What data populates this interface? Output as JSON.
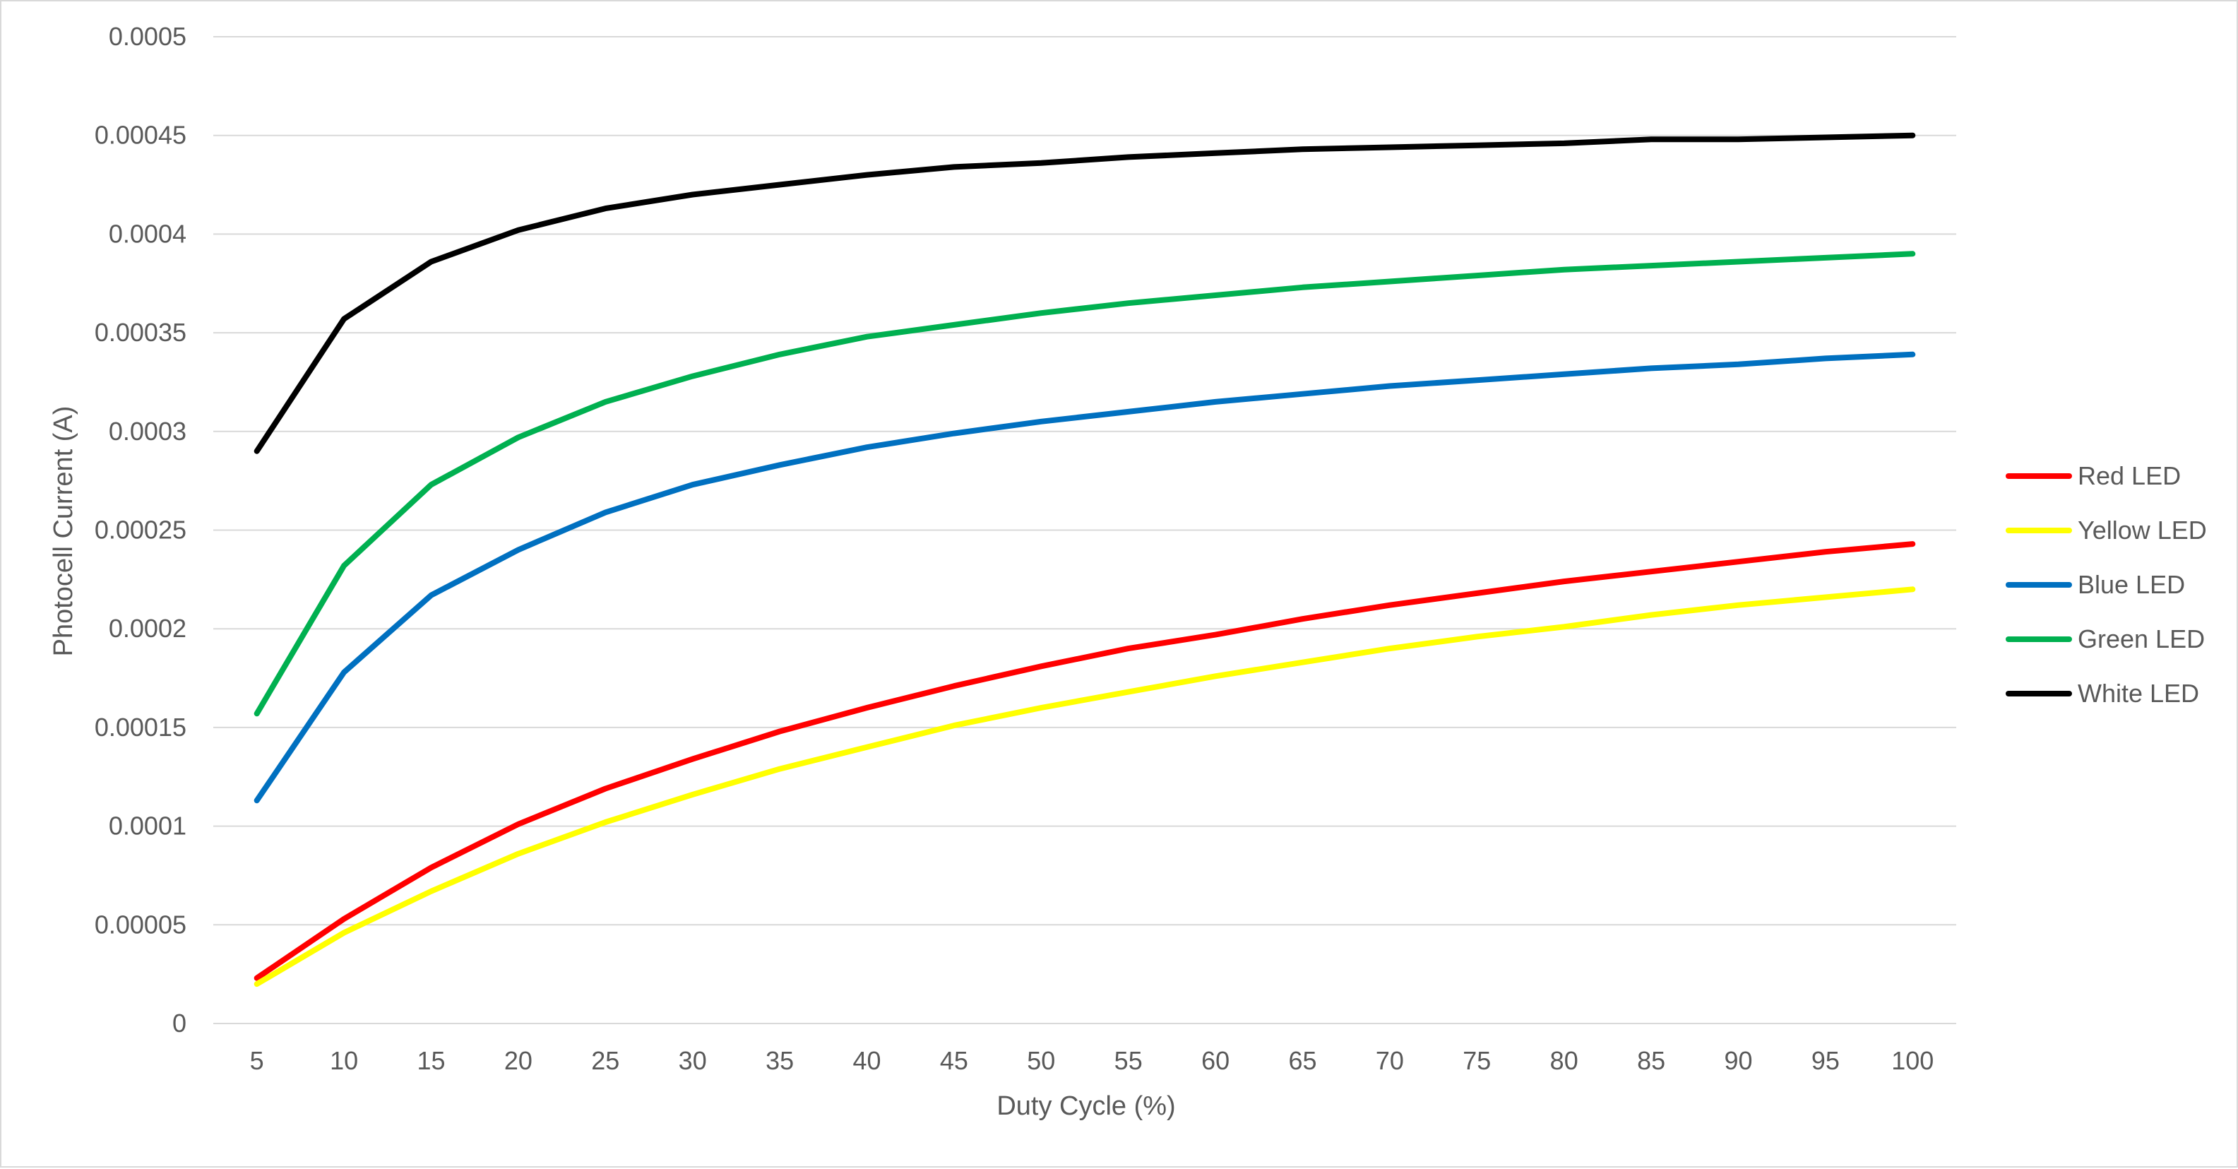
{
  "chart_data": {
    "type": "line",
    "title": "",
    "xlabel": "Duty Cycle (%)",
    "ylabel": "Photocell Current (A)",
    "x": [
      5,
      10,
      15,
      20,
      25,
      30,
      35,
      40,
      45,
      50,
      55,
      60,
      65,
      70,
      75,
      80,
      85,
      90,
      95,
      100
    ],
    "x_tick_labels": [
      "5",
      "10",
      "15",
      "20",
      "25",
      "30",
      "35",
      "40",
      "45",
      "50",
      "55",
      "60",
      "65",
      "70",
      "75",
      "80",
      "85",
      "90",
      "95",
      "100"
    ],
    "ylim": [
      0,
      0.0005
    ],
    "y_ticks": [
      0,
      5e-05,
      0.0001,
      0.00015,
      0.0002,
      0.00025,
      0.0003,
      0.00035,
      0.0004,
      0.00045,
      0.0005
    ],
    "y_tick_labels": [
      "0",
      "0.00005",
      "0.0001",
      "0.00015",
      "0.0002",
      "0.00025",
      "0.0003",
      "0.00035",
      "0.0004",
      "0.00045",
      "0.0005"
    ],
    "grid": "horizontal",
    "legend_position": "right",
    "series": [
      {
        "name": "Red LED",
        "color": "#ff0000",
        "values": [
          2.3e-05,
          5.3e-05,
          7.9e-05,
          0.000101,
          0.000119,
          0.000134,
          0.000148,
          0.00016,
          0.000171,
          0.000181,
          0.00019,
          0.000197,
          0.000205,
          0.000212,
          0.000218,
          0.000224,
          0.000229,
          0.000234,
          0.000239,
          0.000243
        ]
      },
      {
        "name": "Yellow LED",
        "color": "#ffff00",
        "values": [
          2e-05,
          4.6e-05,
          6.7e-05,
          8.6e-05,
          0.000102,
          0.000116,
          0.000129,
          0.00014,
          0.000151,
          0.00016,
          0.000168,
          0.000176,
          0.000183,
          0.00019,
          0.000196,
          0.000201,
          0.000207,
          0.000212,
          0.000216,
          0.00022
        ]
      },
      {
        "name": "Blue LED",
        "color": "#0070c0",
        "values": [
          0.000113,
          0.000178,
          0.000217,
          0.00024,
          0.000259,
          0.000273,
          0.000283,
          0.000292,
          0.000299,
          0.000305,
          0.00031,
          0.000315,
          0.000319,
          0.000323,
          0.000326,
          0.000329,
          0.000332,
          0.000334,
          0.000337,
          0.000339
        ]
      },
      {
        "name": "Green LED",
        "color": "#00b050",
        "values": [
          0.000157,
          0.000232,
          0.000273,
          0.000297,
          0.000315,
          0.000328,
          0.000339,
          0.000348,
          0.000354,
          0.00036,
          0.000365,
          0.000369,
          0.000373,
          0.000376,
          0.000379,
          0.000382,
          0.000384,
          0.000386,
          0.000388,
          0.00039
        ]
      },
      {
        "name": "White LED",
        "color": "#000000",
        "values": [
          0.00029,
          0.000357,
          0.000386,
          0.000402,
          0.000413,
          0.00042,
          0.000425,
          0.00043,
          0.000434,
          0.000436,
          0.000439,
          0.000441,
          0.000443,
          0.000444,
          0.000445,
          0.000446,
          0.000448,
          0.000448,
          0.000449,
          0.00045
        ]
      }
    ]
  },
  "colors": {
    "gridline": "#d9d9d9",
    "text": "#595959",
    "border": "#d9d9d9"
  }
}
